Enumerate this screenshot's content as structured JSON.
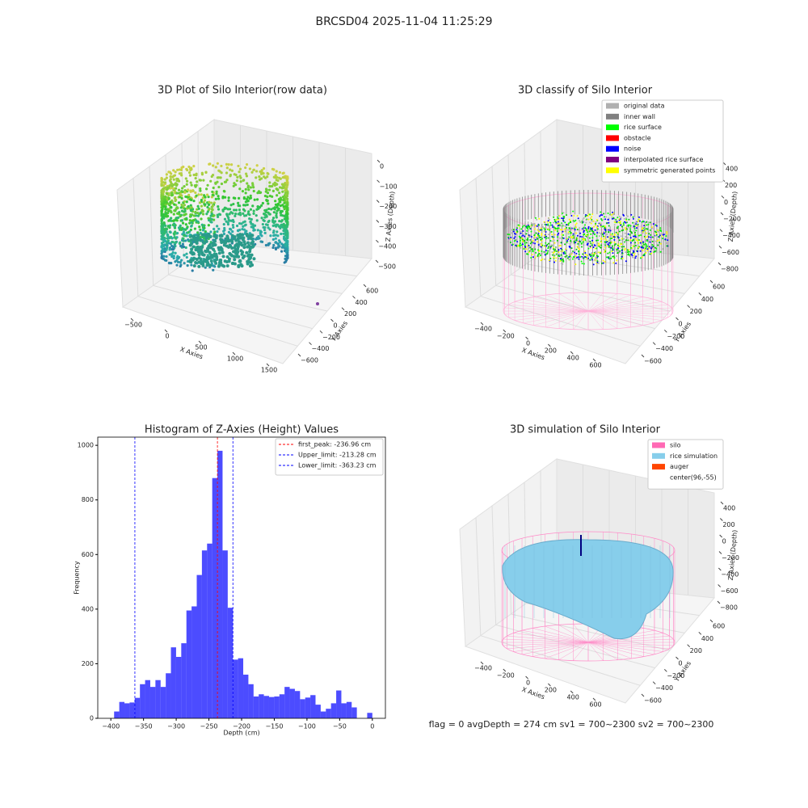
{
  "title": "BRCSD04 2025-11-04 11:25:29",
  "footer": "flag = 0     avgDepth = 274 cm  sv1 = 700~2300  sv2 = 700~2300",
  "chart_data": [
    {
      "type": "scatter3d",
      "title": "3D Plot of Silo Interior(row data)",
      "xlabel": "X Axies",
      "ylabel": "Y Axies",
      "zlabel": "Z Axies (Depth)",
      "xticks": [
        {
          "value": -500,
          "label": "−500"
        },
        0,
        500,
        1000,
        1500
      ],
      "yticks": [
        {
          "value": -600,
          "label": "−600"
        },
        {
          "value": -400,
          "label": "−400"
        },
        {
          "value": -200,
          "label": "−200"
        },
        0,
        200,
        400,
        600
      ],
      "zticks": [
        0,
        {
          "value": -100,
          "label": "−100"
        },
        {
          "value": -200,
          "label": "−200"
        },
        {
          "value": -300,
          "label": "−300"
        },
        {
          "value": -400,
          "label": "−400"
        },
        {
          "value": -500,
          "label": "−500"
        }
      ]
    },
    {
      "type": "scatter3d",
      "title": "3D classify of Silo Interior",
      "xlabel": "X Axies",
      "ylabel": "Y Axies",
      "zlabel": "Z Axies (Depth)",
      "xticks": [
        {
          "value": -400,
          "label": "−400"
        },
        {
          "value": -200,
          "label": "−200"
        },
        0,
        200,
        400,
        600
      ],
      "yticks": [
        {
          "value": -600,
          "label": "−600"
        },
        {
          "value": -400,
          "label": "−400"
        },
        {
          "value": -200,
          "label": "−200"
        },
        0,
        200,
        400,
        600
      ],
      "zticks": [
        400,
        200,
        0,
        {
          "value": -200,
          "label": "−200"
        },
        {
          "value": -400,
          "label": "−400"
        },
        {
          "value": -600,
          "label": "−600"
        },
        {
          "value": -800,
          "label": "−800"
        }
      ],
      "legend": [
        {
          "name": "original data",
          "color": "#b0b0b0"
        },
        {
          "name": "inner wall",
          "color": "#808080"
        },
        {
          "name": "rice surface",
          "color": "#00ff00"
        },
        {
          "name": "obstacle",
          "color": "#ff0000"
        },
        {
          "name": "noise",
          "color": "#0000ff"
        },
        {
          "name": "interpolated rice surface",
          "color": "#800080"
        },
        {
          "name": "symmetric generated points",
          "color": "#ffff00"
        }
      ]
    },
    {
      "type": "histogram",
      "title": "Histogram of Z-Axies (Height) Values",
      "xlabel": "Depth (cm)",
      "ylabel": "Frequency",
      "color": "#0000ff",
      "alpha": 0.7,
      "bins": [
        -395,
        -387.1,
        -379.2,
        -371.3,
        -363.4,
        -355.5,
        -347.6,
        -339.7,
        -331.8,
        -323.9,
        -316,
        -308.1,
        -300.2,
        -292.3,
        -284.4,
        -276.5,
        -268.6,
        -260.7,
        -252.8,
        -244.9,
        -237,
        -229.1,
        -221.2,
        -213.3,
        -205.4,
        -197.5,
        -189.6,
        -181.7,
        -173.8,
        -165.9,
        -158,
        -150.1,
        -142.2,
        -134.3,
        -126.4,
        -118.5,
        -110.6,
        -102.7,
        -94.8,
        -86.9,
        -79,
        -71.1,
        -63.2,
        -55.3,
        -47.4,
        -39.5,
        -31.6,
        -23.7,
        -15.8,
        -7.9,
        0
      ],
      "values": [
        25,
        60,
        55,
        58,
        75,
        125,
        140,
        115,
        140,
        115,
        165,
        260,
        225,
        275,
        395,
        410,
        525,
        615,
        640,
        880,
        980,
        615,
        405,
        215,
        220,
        160,
        125,
        80,
        88,
        82,
        78,
        80,
        88,
        115,
        108,
        100,
        70,
        76,
        85,
        50,
        25,
        35,
        55,
        102,
        55,
        60,
        40,
        0,
        0,
        20
      ],
      "xlim": [
        -420,
        20
      ],
      "ylim": [
        0,
        1030
      ],
      "xticks": [
        {
          "value": -400,
          "label": "−400"
        },
        {
          "value": -350,
          "label": "−350"
        },
        {
          "value": -300,
          "label": "−300"
        },
        {
          "value": -250,
          "label": "−250"
        },
        {
          "value": -200,
          "label": "−200"
        },
        {
          "value": -150,
          "label": "−150"
        },
        {
          "value": -100,
          "label": "−100"
        },
        {
          "value": -50,
          "label": "−50"
        },
        0
      ],
      "yticks": [
        0,
        200,
        400,
        600,
        800,
        1000
      ],
      "vlines": [
        {
          "label": "first_peak: -236.96 cm",
          "value": -236.96,
          "color": "#ff0000"
        },
        {
          "label": "Upper_limit: -213.28 cm",
          "value": -213.28,
          "color": "#0000ff"
        },
        {
          "label": "Lower_limit: -363.23 cm",
          "value": -363.23,
          "color": "#0000ff"
        }
      ],
      "legend_loc": "upper right"
    },
    {
      "type": "surface3d",
      "title": "3D simulation of Silo Interior",
      "xlabel": "X Axies",
      "ylabel": "Y Axies",
      "zlabel": "Z Axies (Depth)",
      "xticks": [
        {
          "value": -400,
          "label": "−400"
        },
        {
          "value": -200,
          "label": "−200"
        },
        0,
        200,
        400,
        600
      ],
      "yticks": [
        {
          "value": -600,
          "label": "−600"
        },
        {
          "value": -400,
          "label": "−400"
        },
        {
          "value": -200,
          "label": "−200"
        },
        0,
        200,
        400,
        600
      ],
      "zticks": [
        400,
        200,
        0,
        {
          "value": -200,
          "label": "−200"
        },
        {
          "value": -400,
          "label": "−400"
        },
        {
          "value": -600,
          "label": "−600"
        },
        {
          "value": -800,
          "label": "−800"
        }
      ],
      "legend": [
        {
          "name": "silo",
          "color": "#ff69b4"
        },
        {
          "name": "rice simulation",
          "color": "#87ceeb"
        },
        {
          "name": "auger",
          "color": "#ff4500"
        },
        {
          "name": "center(96,-55)",
          "color": "#ffffff"
        }
      ]
    }
  ]
}
